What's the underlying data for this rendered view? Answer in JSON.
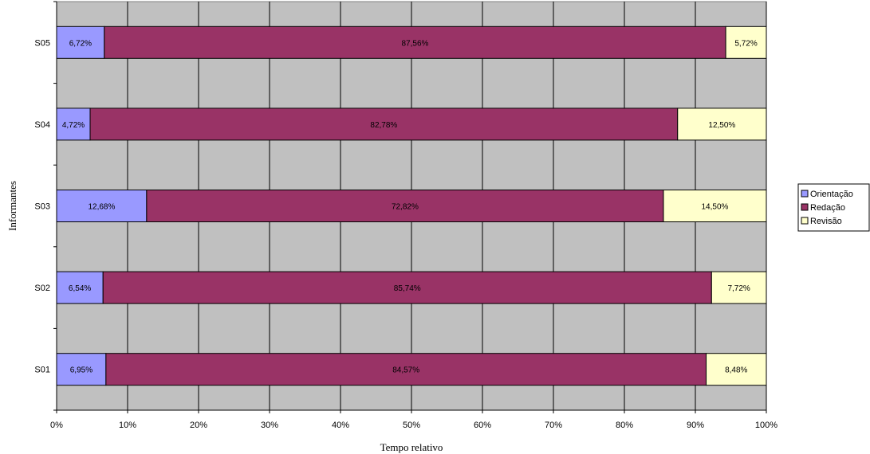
{
  "chart_data": {
    "type": "bar",
    "orientation": "horizontal",
    "stacked": "percent",
    "categories": [
      "S01",
      "S02",
      "S03",
      "S04",
      "S05"
    ],
    "series": [
      {
        "name": "Orientação",
        "color": "#9999ff",
        "values": [
          6.95,
          6.54,
          12.68,
          4.72,
          6.72
        ],
        "labels": [
          "6,95%",
          "6,54%",
          "12,68%",
          "4,72%",
          "6,72%"
        ]
      },
      {
        "name": "Redação",
        "color": "#993366",
        "values": [
          84.57,
          85.74,
          72.82,
          82.78,
          87.56
        ],
        "labels": [
          "84,57%",
          "85,74%",
          "72,82%",
          "82,78%",
          "87,56%"
        ]
      },
      {
        "name": "Revisão",
        "color": "#ffffcc",
        "values": [
          8.48,
          7.72,
          14.5,
          12.5,
          5.72
        ],
        "labels": [
          "8,48%",
          "7,72%",
          "14,50%",
          "12,50%",
          "5,72%"
        ]
      }
    ],
    "xlim": [
      0,
      100
    ],
    "x_ticks": [
      "0%",
      "10%",
      "20%",
      "30%",
      "40%",
      "50%",
      "60%",
      "70%",
      "80%",
      "90%",
      "100%"
    ],
    "xlabel": "Tempo relativo",
    "ylabel": "Informantes",
    "title": "",
    "grid": true,
    "plot_background": "#c0c0c0",
    "legend_placement": "right"
  }
}
